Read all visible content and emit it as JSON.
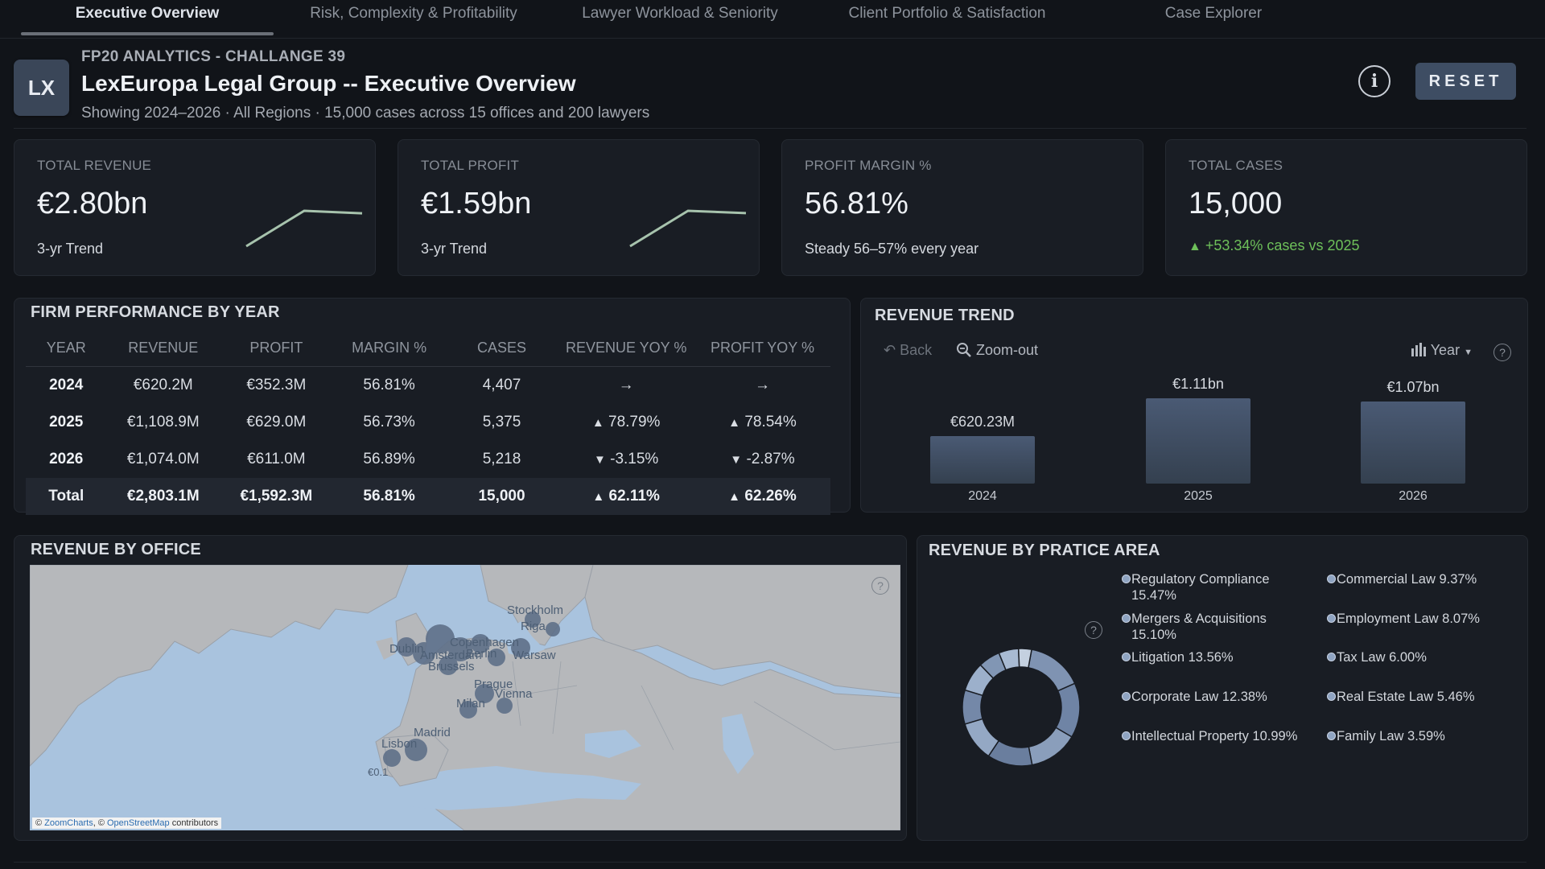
{
  "tabs": [
    {
      "label": "Executive Overview",
      "active": true
    },
    {
      "label": "Risk, Complexity & Profitability",
      "active": false
    },
    {
      "label": "Lawyer Workload & Seniority",
      "active": false
    },
    {
      "label": "Client Portfolio & Satisfaction",
      "active": false
    },
    {
      "label": "Case Explorer",
      "active": false
    }
  ],
  "header": {
    "logo_text": "LX",
    "pre_title": "FP20 ANALYTICS - CHALLANGE 39",
    "title": "LexEuropa Legal Group -- Executive Overview",
    "subtitle": "Showing 2024–2026 · All Regions · 15,000 cases across 15 offices and 200 lawyers",
    "info_icon": "info-icon",
    "reset_label": "RESET"
  },
  "kpis": [
    {
      "label": "TOTAL REVENUE",
      "value": "€2.80bn",
      "sub": "3-yr Trend",
      "trend": [
        620.2,
        1108.9,
        1074.0
      ]
    },
    {
      "label": "TOTAL PROFIT",
      "value": "€1.59bn",
      "sub": "3-yr Trend",
      "trend": [
        352.3,
        629.0,
        611.0
      ]
    },
    {
      "label": "PROFIT MARGIN %",
      "value": "56.81%",
      "sub": "Steady 56–57% every year"
    },
    {
      "label": "TOTAL CASES",
      "value": "15,000",
      "sub": "+53.34% cases vs 2025",
      "sub_icon": "triangle-up-icon",
      "sub_color": "#6ec05a"
    }
  ],
  "performance": {
    "title": "FIRM PERFORMANCE BY YEAR",
    "columns": [
      "YEAR",
      "REVENUE",
      "PROFIT",
      "MARGIN %",
      "CASES",
      "REVENUE YOY %",
      "PROFIT YOY %"
    ],
    "rows": [
      {
        "year": "2024",
        "revenue": "€620.2M",
        "profit": "€352.3M",
        "margin": "56.81%",
        "cases": "4,407",
        "rev_yoy_icon": "→",
        "rev_yoy": "",
        "profit_yoy_icon": "→",
        "profit_yoy": ""
      },
      {
        "year": "2025",
        "revenue": "€1,108.9M",
        "profit": "€629.0M",
        "margin": "56.73%",
        "cases": "5,375",
        "rev_yoy_icon": "▲",
        "rev_yoy": "78.79%",
        "profit_yoy_icon": "▲",
        "profit_yoy": "78.54%"
      },
      {
        "year": "2026",
        "revenue": "€1,074.0M",
        "profit": "€611.0M",
        "margin": "56.89%",
        "cases": "5,218",
        "rev_yoy_icon": "▼",
        "rev_yoy": "-3.15%",
        "profit_yoy_icon": "▼",
        "profit_yoy": "-2.87%"
      }
    ],
    "total": {
      "year": "Total",
      "revenue": "€2,803.1M",
      "profit": "€1,592.3M",
      "margin": "56.81%",
      "cases": "15,000",
      "rev_yoy_icon": "▲",
      "rev_yoy": "62.11%",
      "profit_yoy_icon": "▲",
      "profit_yoy": "62.26%"
    }
  },
  "revenue_trend": {
    "title": "REVENUE TREND",
    "back_label": "Back",
    "zoom_label": "Zoom-out",
    "period_label": "Year",
    "help_icon": "?"
  },
  "chart_data": {
    "type": "bar",
    "categories": [
      "2024",
      "2025",
      "2026"
    ],
    "values": [
      620.23,
      1110,
      1070
    ],
    "data_labels": [
      "€620.23M",
      "€1.11bn",
      "€1.07bn"
    ],
    "title": "REVENUE TREND",
    "xlabel": "",
    "ylabel": "",
    "ylim": [
      0,
      1500
    ],
    "color": "#4a5a74"
  },
  "office": {
    "title": "REVENUE BY OFFICE",
    "help_icon": "?",
    "cities": [
      "Stockholm",
      "Riga",
      "Dublin",
      "Copenhagen",
      "Amsterdam",
      "Berlin",
      "Warsaw",
      "Brussels",
      "Prague",
      "Vienna",
      "Milan",
      "Madrid",
      "Lisbon"
    ],
    "partial_label": "€0.1",
    "attribution": {
      "pre": "© ",
      "link1": "ZoomCharts",
      "mid": ", © ",
      "link2": "OpenStreetMap",
      "post": " contributors"
    }
  },
  "practice": {
    "title": "REVENUE BY PRATICE AREA",
    "help_icon": "?",
    "items": [
      {
        "label": "Regulatory Compliance 15.47%",
        "value": 15.47
      },
      {
        "label": "Mergers & Acquisitions 15.10%",
        "value": 15.1
      },
      {
        "label": "Litigation 13.56%",
        "value": 13.56
      },
      {
        "label": "Corporate Law 12.38%",
        "value": 12.38
      },
      {
        "label": "Intellectual Property 10.99%",
        "value": 10.99
      },
      {
        "label": "Commercial Law 9.37%",
        "value": 9.37
      },
      {
        "label": "Employment Law 8.07%",
        "value": 8.07
      },
      {
        "label": "Tax Law 6.00%",
        "value": 6.0
      },
      {
        "label": "Real Estate Law 5.46%",
        "value": 5.46
      },
      {
        "label": "Family Law 3.59%",
        "value": 3.59
      }
    ]
  }
}
